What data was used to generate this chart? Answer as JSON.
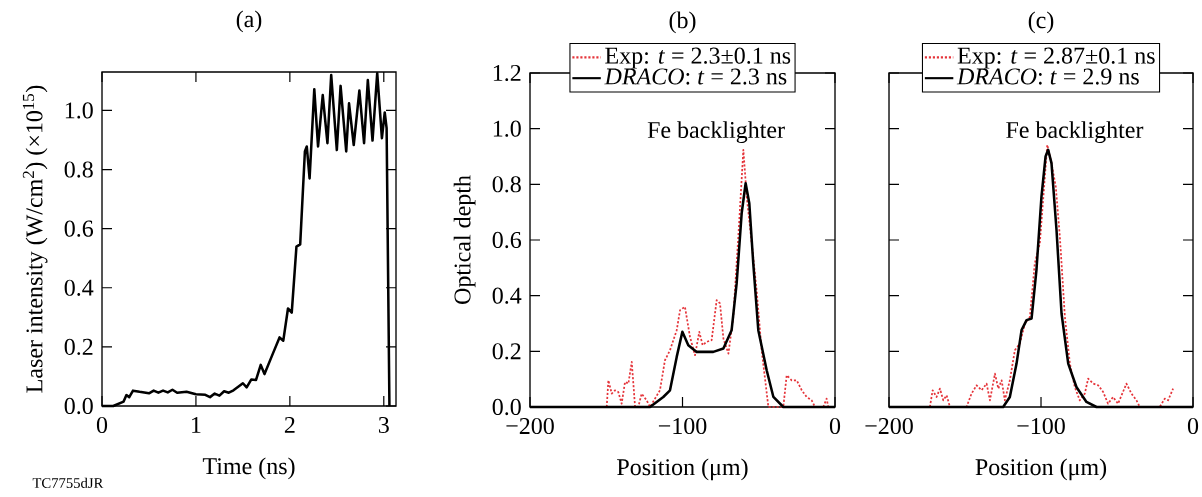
{
  "chart_data": [
    {
      "type": "line",
      "title": "(a)",
      "xlabel": "Time (ns)",
      "ylabel": "Laser intensity (W/cm$^{2}$) (×10$^{15}$)",
      "xlim": [
        0,
        3.13
      ],
      "ylim": [
        0,
        1.13
      ],
      "xticks": [
        0,
        1,
        2,
        3
      ],
      "yticks": [
        {
          "value": 0,
          "label": "0.0"
        },
        {
          "value": 0.2,
          "label": "0.2"
        },
        {
          "value": 0.4,
          "label": "0.4"
        },
        {
          "value": 0.6,
          "label": "0.6"
        },
        {
          "value": 0.8,
          "label": "0.8"
        },
        {
          "value": 1.0,
          "label": "1.0"
        }
      ],
      "grid": false,
      "legend": false,
      "marker": "none",
      "annotations": [
        "TC7755dJR"
      ],
      "series": [
        {
          "color": "#000000",
          "line_style": "solid",
          "x": [
            0,
            0.12,
            0.23,
            0.26,
            0.29,
            0.33,
            0.4,
            0.5,
            0.55,
            0.6,
            0.65,
            0.7,
            0.75,
            0.8,
            0.9,
            1.0,
            1.1,
            1.15,
            1.2,
            1.25,
            1.3,
            1.35,
            1.4,
            1.5,
            1.54,
            1.59,
            1.64,
            1.69,
            1.73,
            1.82,
            1.89,
            1.93,
            1.98,
            2.02,
            2.07,
            2.11,
            2.16,
            2.18,
            2.21,
            2.26,
            2.3,
            2.35,
            2.4,
            2.44,
            2.5,
            2.54,
            2.6,
            2.63,
            2.68,
            2.74,
            2.79,
            2.83,
            2.88,
            2.93,
            2.98,
            3.01,
            3.03,
            3.06
          ],
          "values": [
            0,
            0,
            0.015,
            0.037,
            0.03,
            0.052,
            0.048,
            0.043,
            0.052,
            0.045,
            0.052,
            0.046,
            0.055,
            0.045,
            0.048,
            0.04,
            0.038,
            0.03,
            0.042,
            0.035,
            0.05,
            0.045,
            0.053,
            0.077,
            0.063,
            0.09,
            0.088,
            0.139,
            0.108,
            0.178,
            0.232,
            0.221,
            0.33,
            0.316,
            0.539,
            0.547,
            0.861,
            0.878,
            0.77,
            1.072,
            0.878,
            1.052,
            0.889,
            1.12,
            0.866,
            1.083,
            0.861,
            1.024,
            0.883,
            1.067,
            0.889,
            1.103,
            0.898,
            1.126,
            0.906,
            0.993,
            0.94,
            0
          ]
        }
      ]
    },
    {
      "type": "line",
      "title": "(b)",
      "xlabel": "Position (μm)",
      "ylabel": "Optical depth",
      "xlim": [
        -200,
        0
      ],
      "ylim": [
        0,
        1.2
      ],
      "xticks": [
        {
          "value": -200,
          "label": "−200"
        },
        {
          "value": -100,
          "label": "−100"
        },
        {
          "value": 0,
          "label": "0"
        }
      ],
      "yticks": [
        {
          "value": 0,
          "label": "0.0"
        },
        {
          "value": 0.2,
          "label": "0.2"
        },
        {
          "value": 0.4,
          "label": "0.4"
        },
        {
          "value": 0.6,
          "label": "0.6"
        },
        {
          "value": 0.8,
          "label": "0.8"
        },
        {
          "value": 1.0,
          "label": "1.0"
        },
        {
          "value": 1.2,
          "label": "1.2"
        }
      ],
      "grid": false,
      "legend": "top",
      "marker": "none",
      "annotations": [
        "Fe backlighter"
      ],
      "series": [
        {
          "name": "Exp: *t* = 2.3±0.1 ns",
          "color": "#e5343a",
          "line_style": "dotted",
          "x": [
            -149.7,
            -148.6,
            -146.4,
            -144.3,
            -142.1,
            -139.9,
            -137.7,
            -135.5,
            -133.3,
            -131.1,
            -129,
            -126.8,
            -123.5,
            -121.3,
            -114.8,
            -111.5,
            -108.2,
            -103.8,
            -101.6,
            -98.4,
            -95.1,
            -91.8,
            -89,
            -86.8,
            -84.2,
            -80.9,
            -77.6,
            -75.4,
            -73.2,
            -69.9,
            -66.7,
            -63.4,
            -60.1,
            -57.9,
            -54.6,
            -51.4,
            -48.1,
            -43.7,
            -33.9,
            -31.7,
            -28.4,
            -25.1,
            -21.8,
            -18.6,
            -15.3,
            -13.1,
            -7.7,
            -5.5,
            -4.4
          ],
          "values": [
            0,
            0.096,
            0.048,
            0.06,
            0.054,
            0.012,
            0.09,
            0.084,
            0.162,
            0,
            0,
            0.048,
            0.024,
            0,
            0.06,
            0.168,
            0.204,
            0.276,
            0.348,
            0.36,
            0.252,
            0.186,
            0.27,
            0.222,
            0.234,
            0.24,
            0.384,
            0.372,
            0.246,
            0.192,
            0.324,
            0.612,
            0.924,
            0.756,
            0.588,
            0.42,
            0.204,
            0,
            0,
            0.114,
            0.096,
            0.096,
            0.06,
            0.036,
            0.024,
            0,
            0,
            0.03,
            0
          ]
        },
        {
          "name": "*DRACO*: *t* = 2.3 ns",
          "color": "#000000",
          "line_style": "solid",
          "x": [
            -200,
            -121.3,
            -112.6,
            -108.2,
            -103.8,
            -100.1,
            -96.2,
            -90.7,
            -79.8,
            -73.2,
            -67.8,
            -64.5,
            -61.2,
            -58.6,
            -56.2,
            -53.6,
            -50.3,
            -44.8,
            -40.4,
            -33.9,
            0
          ],
          "values": [
            0,
            0,
            0.036,
            0.06,
            0.18,
            0.27,
            0.222,
            0.198,
            0.198,
            0.21,
            0.276,
            0.444,
            0.696,
            0.804,
            0.732,
            0.516,
            0.276,
            0.132,
            0.036,
            0,
            0
          ]
        }
      ]
    },
    {
      "type": "line",
      "title": "(c)",
      "xlabel": "Position (μm)",
      "xlim": [
        -200,
        0
      ],
      "ylim": [
        0,
        1.2
      ],
      "xticks": [
        {
          "value": -200,
          "label": "−200"
        },
        {
          "value": -100,
          "label": "−100"
        },
        {
          "value": 0,
          "label": "0"
        }
      ],
      "yticks": [
        0,
        0.2,
        0.4,
        0.6,
        0.8,
        1.0,
        1.2
      ],
      "tick_labels": "x",
      "grid": false,
      "legend": "top",
      "marker": "none",
      "annotations": [
        "Fe backlighter"
      ],
      "series": [
        {
          "name": "Exp: *t* = 2.87±0.1 ns",
          "color": "#e5343a",
          "line_style": "dotted",
          "x": [
            -173.1,
            -171.3,
            -168.7,
            -166.5,
            -164.3,
            -162.1,
            -159.9,
            -149,
            -145.7,
            -142.4,
            -139.1,
            -135.8,
            -133.6,
            -130.3,
            -128.1,
            -125.9,
            -123.8,
            -120.5,
            -117.2,
            -113.9,
            -110.6,
            -107.3,
            -104.1,
            -100.8,
            -98.1,
            -95.9,
            -93.1,
            -90.3,
            -87.6,
            -84.3,
            -81,
            -77.8,
            -74.5,
            -71.2,
            -69,
            -65.7,
            -62.4,
            -59.1,
            -55.9,
            -52.6,
            -49.3,
            -43.8,
            -40.5,
            -37.2,
            -35,
            -21.9,
            -18.6,
            -16.4,
            -13.1
          ],
          "values": [
            0,
            0.06,
            0.036,
            0.066,
            0.024,
            0.042,
            0,
            0,
            0.048,
            0.078,
            0.06,
            0.084,
            0.024,
            0.12,
            0.066,
            0.096,
            0.024,
            0.096,
            0.204,
            0.228,
            0.3,
            0.324,
            0.516,
            0.588,
            0.78,
            0.942,
            0.876,
            0.792,
            0.612,
            0.324,
            0.156,
            0.072,
            0.024,
            0.048,
            0.102,
            0.084,
            0.078,
            0.054,
            0.012,
            0.036,
            0.012,
            0.084,
            0.048,
            0.024,
            0,
            0,
            0.03,
            0.024,
            0.066
          ]
        },
        {
          "name": "*DRACO*: *t* = 2.9 ns",
          "color": "#000000",
          "line_style": "solid",
          "x": [
            -200,
            -124.9,
            -120.5,
            -116.1,
            -112.8,
            -109.5,
            -106.2,
            -103,
            -99.7,
            -97,
            -95.3,
            -93.1,
            -89.8,
            -86.5,
            -82.1,
            -76.7,
            -70.1,
            -63.5,
            0
          ],
          "values": [
            0,
            0,
            0.036,
            0.156,
            0.276,
            0.312,
            0.318,
            0.492,
            0.756,
            0.9,
            0.924,
            0.876,
            0.636,
            0.336,
            0.156,
            0.072,
            0.018,
            0,
            0
          ]
        }
      ]
    }
  ]
}
